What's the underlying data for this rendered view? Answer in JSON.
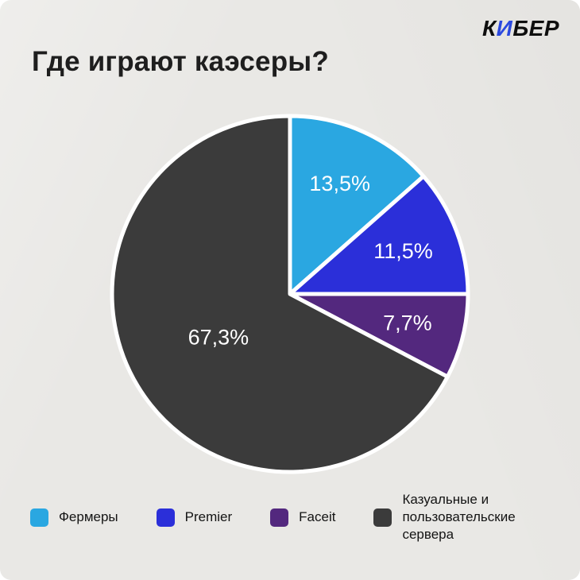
{
  "title": "Где играют каэсеры?",
  "brand": {
    "prefix": "К",
    "accent": "И",
    "suffix": "БЕР",
    "text_color": "#0e0e0e",
    "accent_color": "#2b49df"
  },
  "page": {
    "background_color": "#e9e8e5"
  },
  "chart_data": {
    "type": "pie",
    "title": "Где играют каэсеры?",
    "start_angle_deg": 0,
    "direction": "clockwise",
    "legend_position": "bottom",
    "units": "%",
    "slices": [
      {
        "label": "Фермеры",
        "value": 13.5,
        "display": "13,5%",
        "color": "#2aa7e1"
      },
      {
        "label": "Premier",
        "value": 11.5,
        "display": "11,5%",
        "color": "#2b2fd9"
      },
      {
        "label": "Faceit",
        "value": 7.7,
        "display": "7,7%",
        "color": "#53287e"
      },
      {
        "label": "Казуальные и пользовательские сервера",
        "value": 67.3,
        "display": "67,3%",
        "color": "#3b3b3b"
      }
    ]
  }
}
